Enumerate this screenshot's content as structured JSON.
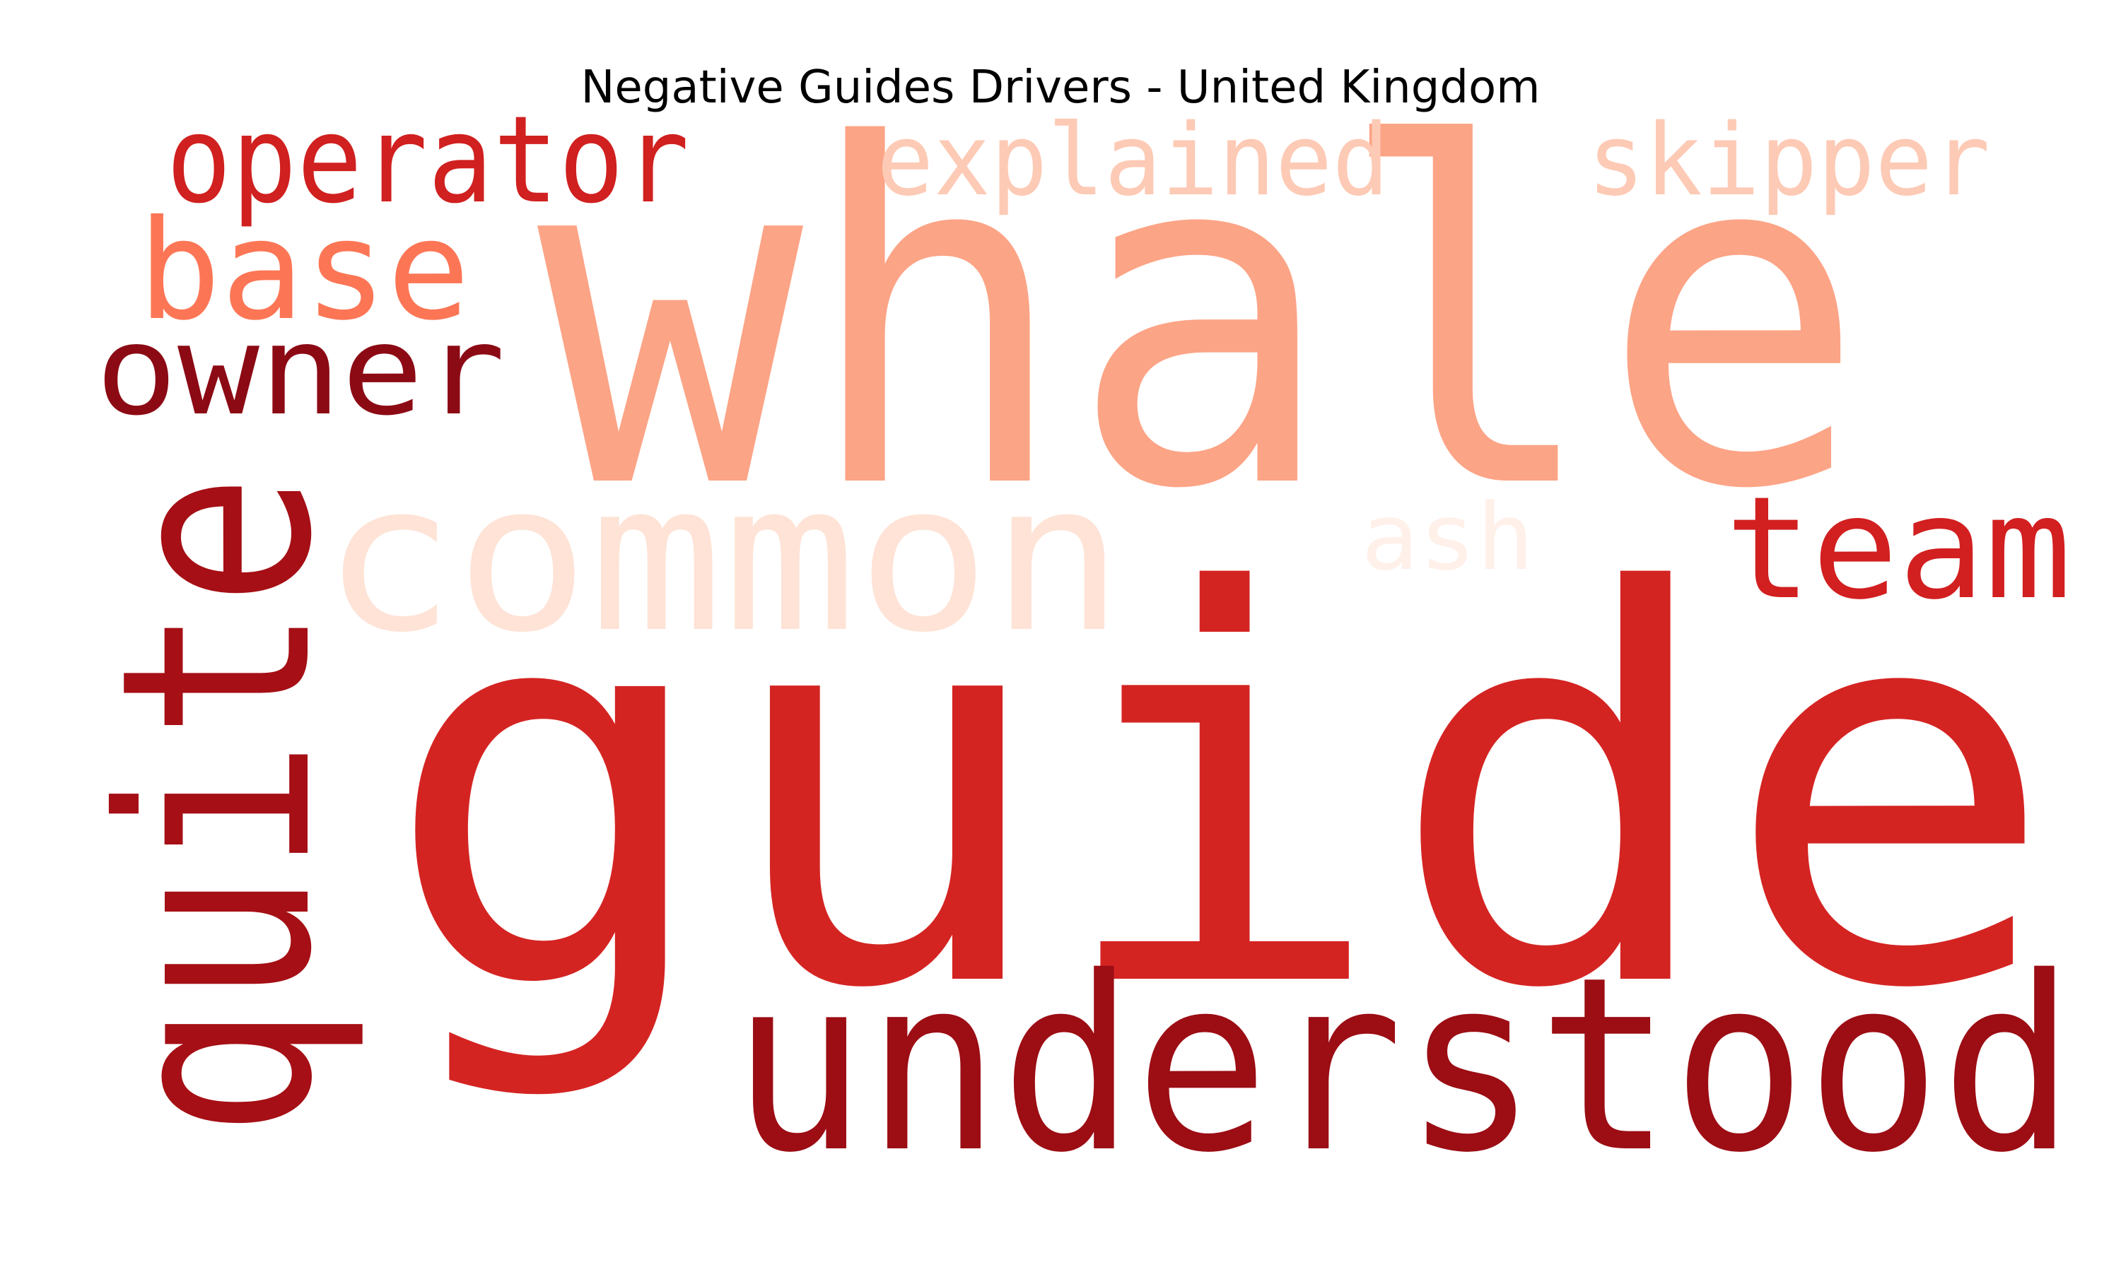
{
  "chart_data": {
    "type": "wordcloud",
    "title": "Negative Guides Drivers - United Kingdom",
    "colormap": "Reds",
    "words": [
      {
        "text": "guide",
        "color": "#d42422"
      },
      {
        "text": "whale",
        "color": "#fca486"
      },
      {
        "text": "understood",
        "color": "#9c0d14"
      },
      {
        "text": "quite",
        "color": "#a50f15"
      },
      {
        "text": "common",
        "color": "#fee3d6"
      },
      {
        "text": "team",
        "color": "#d21f20"
      },
      {
        "text": "operator",
        "color": "#d0201f"
      },
      {
        "text": "base",
        "color": "#fc7656"
      },
      {
        "text": "owner",
        "color": "#8c0a14"
      },
      {
        "text": "explained",
        "color": "#fdcab5"
      },
      {
        "text": "skipper",
        "color": "#fdcab5"
      },
      {
        "text": "ash",
        "color": "#fff0e9"
      }
    ]
  }
}
